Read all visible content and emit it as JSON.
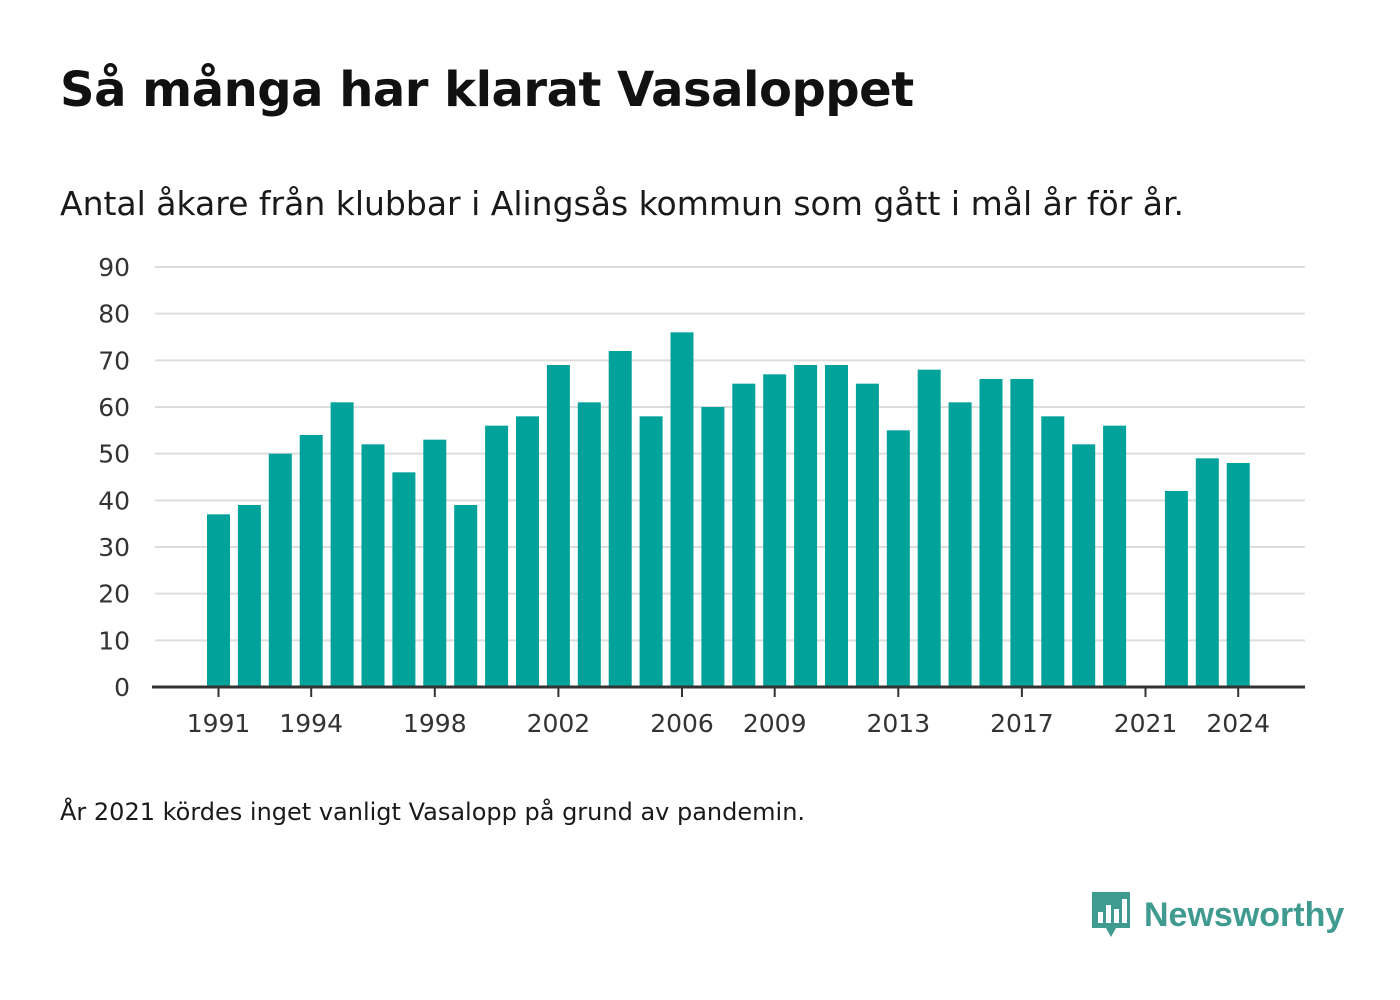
{
  "header": {
    "title": "Så många har klarat Vasaloppet",
    "subtitle": "Antal åkare från klubbar i Alingsås kommun som gått i mål år för år."
  },
  "footer": {
    "note": "År 2021 kördes inget vanligt Vasalopp på grund av pandemin.",
    "brand_name": "Newsworthy",
    "brand_icon": "newsworthy-logo-icon"
  },
  "colors": {
    "bar": "#00a29a",
    "grid": "#dddddd",
    "axis": "#333333",
    "brand": "#3f9a90"
  },
  "chart_data": {
    "type": "bar",
    "title": "Så många har klarat Vasaloppet",
    "subtitle": "Antal åkare från klubbar i Alingsås kommun som gått i mål år för år.",
    "xlabel": "",
    "ylabel": "",
    "categories": [
      1991,
      1992,
      1993,
      1994,
      1995,
      1996,
      1997,
      1998,
      1999,
      2000,
      2001,
      2002,
      2003,
      2004,
      2005,
      2006,
      2007,
      2008,
      2009,
      2010,
      2011,
      2012,
      2013,
      2014,
      2015,
      2016,
      2017,
      2018,
      2019,
      2020,
      2021,
      2022,
      2023,
      2024
    ],
    "values": [
      37,
      39,
      50,
      54,
      61,
      52,
      46,
      53,
      39,
      56,
      58,
      69,
      61,
      72,
      58,
      76,
      60,
      65,
      67,
      69,
      69,
      65,
      55,
      68,
      61,
      66,
      66,
      58,
      52,
      56,
      null,
      42,
      49,
      48
    ],
    "ylim": [
      0,
      90
    ],
    "yticks": [
      0,
      10,
      20,
      30,
      40,
      50,
      60,
      70,
      80,
      90
    ],
    "xticks": [
      1991,
      1994,
      1998,
      2002,
      2006,
      2009,
      2013,
      2017,
      2021,
      2024
    ],
    "grid": "horizontal",
    "legend": "none"
  }
}
